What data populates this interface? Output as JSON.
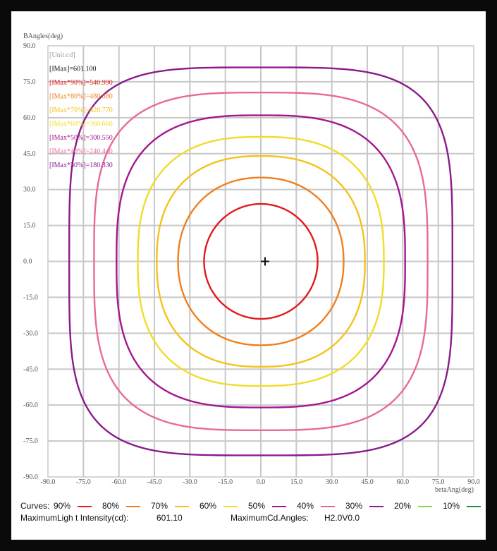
{
  "chart_data": {
    "type": "contour",
    "ylabel": "BAngles(deg)",
    "xlabel": "betaAng(deg)",
    "xlim": [
      -90,
      90
    ],
    "ylim": [
      -90,
      90
    ],
    "grid": true,
    "x_ticks": [
      "-90.0",
      "-75.0",
      "-60.0",
      "-45.0",
      "-30.0",
      "-15.0",
      "0.0",
      "15.0",
      "30.0",
      "45.0",
      "60.0",
      "75.0",
      "90.0"
    ],
    "y_ticks": [
      "90.0",
      "75.0",
      "60.0",
      "45.0",
      "30.0",
      "15.0",
      "0.0",
      "-15.0",
      "-30.0",
      "-45.0",
      "-60.0",
      "-75.0",
      "-90.0"
    ],
    "center_marker": {
      "x": 0,
      "y": 0
    },
    "annotations": [
      {
        "text": "[Unit:cd]",
        "color": "#9a9a9a"
      },
      {
        "text": "[IMax]=601.100",
        "color": "#111111"
      },
      {
        "text": "[IMax*90%]=540.990",
        "color": "#e31a1c"
      },
      {
        "text": "[IMax*80%]=480.880",
        "color": "#f07f1e"
      },
      {
        "text": "[IMax*70%]=420.770",
        "color": "#f5c21b"
      },
      {
        "text": "[IMax*60%]=360.660",
        "color": "#f2dc2a"
      },
      {
        "text": "[IMax*50%]=300.550",
        "color": "#a2188f"
      },
      {
        "text": "[IMax*40%]=240.440",
        "color": "#e8699e"
      },
      {
        "text": "[IMax*30%]=180.330",
        "color": "#8a1c8c"
      }
    ],
    "series": [
      {
        "name": "90%",
        "color": "#e31a1c",
        "radius": 24,
        "shape_exponent": 2.0
      },
      {
        "name": "80%",
        "color": "#f07f1e",
        "radius": 35,
        "shape_exponent": 2.15
      },
      {
        "name": "70%",
        "color": "#f5c21b",
        "radius": 44,
        "shape_exponent": 2.4
      },
      {
        "name": "60%",
        "color": "#f2dc2a",
        "radius": 52,
        "shape_exponent": 2.6
      },
      {
        "name": "50%",
        "color": "#a2188f",
        "radius": 61,
        "shape_exponent": 2.9
      },
      {
        "name": "40%",
        "color": "#e8699e",
        "radius": 70.5,
        "shape_exponent": 3.3
      },
      {
        "name": "30%",
        "color": "#8a1c8c",
        "radius": 81,
        "shape_exponent": 4.0
      }
    ],
    "legend_entries": [
      {
        "name": "90%",
        "color": "#e31a1c"
      },
      {
        "name": "80%",
        "color": "#f07f1e"
      },
      {
        "name": "70%",
        "color": "#f5c21b"
      },
      {
        "name": "60%",
        "color": "#f2dc2a"
      },
      {
        "name": "50%",
        "color": "#a2188f"
      },
      {
        "name": "40%",
        "color": "#e8699e"
      },
      {
        "name": "30%",
        "color": "#8a1c8c"
      },
      {
        "name": "20%",
        "color": "#8fd14f"
      },
      {
        "name": "10%",
        "color": "#1a8f3c"
      }
    ]
  },
  "legend": {
    "curves_label": "Curves:"
  },
  "info": {
    "max_intensity_label": "MaximumLigh t Intensity(cd):",
    "max_intensity_value": "601.10",
    "max_angles_label": "MaximumCd.Angles:",
    "max_angles_value": "H2.0V0.0"
  }
}
